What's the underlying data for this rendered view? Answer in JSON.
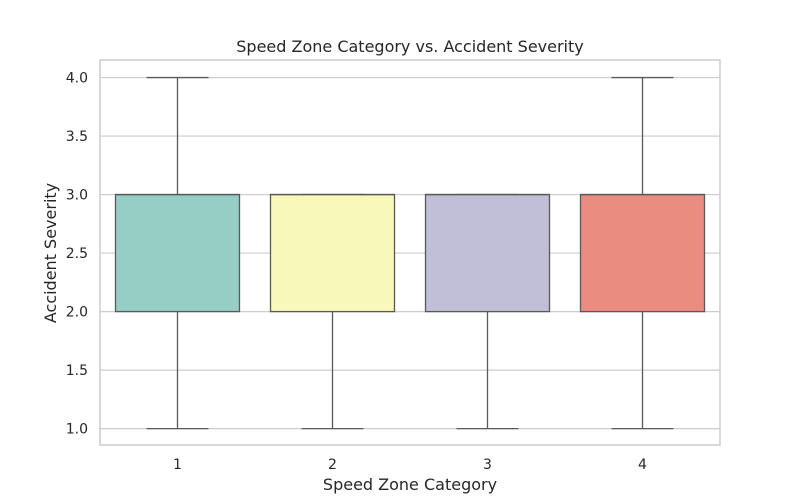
{
  "chart_data": {
    "type": "box",
    "title": "Speed Zone Category vs. Accident Severity",
    "xlabel": "Speed Zone Category",
    "ylabel": "Accident Severity",
    "categories": [
      "1",
      "2",
      "3",
      "4"
    ],
    "ylim": [
      0.86,
      4.15
    ],
    "yticks": [
      "1.0",
      "1.5",
      "2.0",
      "2.5",
      "3.0",
      "3.5",
      "4.0"
    ],
    "grid": true,
    "boxes": [
      {
        "category": "1",
        "min": 1.0,
        "q1": 2.0,
        "median": 3.0,
        "q3": 3.0,
        "max": 4.0,
        "color": "#96cdc4"
      },
      {
        "category": "2",
        "min": 1.0,
        "q1": 2.0,
        "median": 3.0,
        "q3": 3.0,
        "max": 3.0,
        "color": "#f8f8bb"
      },
      {
        "category": "3",
        "min": 1.0,
        "q1": 2.0,
        "median": 3.0,
        "q3": 3.0,
        "max": 3.0,
        "color": "#c1bed8"
      },
      {
        "category": "4",
        "min": 1.0,
        "q1": 2.0,
        "median": 3.0,
        "q3": 3.0,
        "max": 4.0,
        "color": "#eb8c81"
      }
    ]
  }
}
